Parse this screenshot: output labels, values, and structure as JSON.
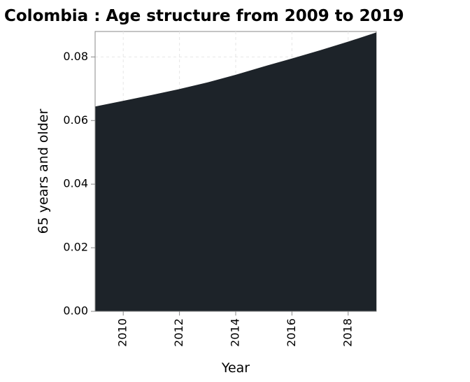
{
  "chart_data": {
    "type": "area",
    "title": "Colombia : Age structure from 2009 to 2019",
    "xlabel": "Year",
    "ylabel": "65 years and older",
    "xlim": [
      2009,
      2019
    ],
    "ylim": [
      0,
      0.088
    ],
    "x_ticks": [
      2010,
      2012,
      2014,
      2016,
      2018
    ],
    "y_ticks": [
      "0.00",
      "0.02",
      "0.04",
      "0.06",
      "0.08"
    ],
    "grid": true,
    "legend": "none",
    "fill_color": "#1d2329",
    "series": [
      {
        "x": [
          2009,
          2010,
          2011,
          2012,
          2013,
          2014,
          2015,
          2016,
          2017,
          2018,
          2019
        ],
        "values": [
          0.0644,
          0.0662,
          0.068,
          0.0699,
          0.072,
          0.0744,
          0.077,
          0.0795,
          0.0821,
          0.0848,
          0.0877
        ]
      }
    ]
  }
}
